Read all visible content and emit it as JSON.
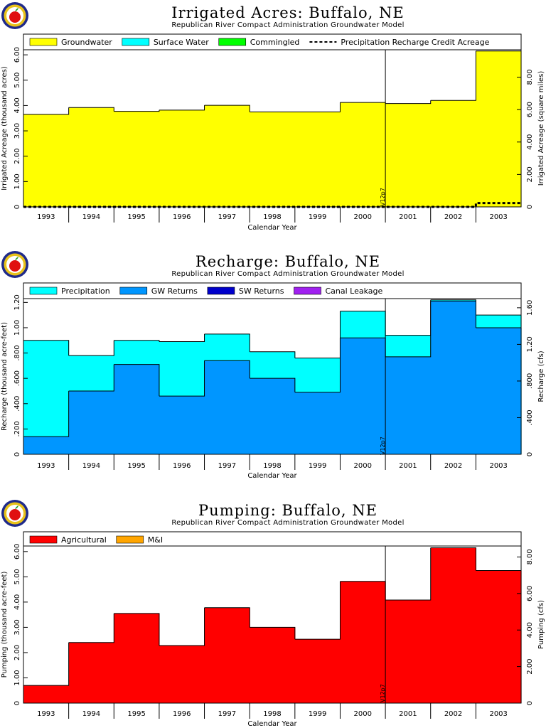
{
  "chart_data": [
    {
      "type": "area",
      "title": "Irrigated Acres: Buffalo, NE",
      "subtitle": "Republican River Compact Administration Groundwater Model",
      "xlabel": "Calendar Year",
      "ylabel": "Irrigated Acreage (thousand acres)",
      "ylabel_right": "Irrigated Acreage (square miles)",
      "categories": [
        "1993",
        "1994",
        "1995",
        "1996",
        "1997",
        "1998",
        "1999",
        "2000",
        "2001",
        "2002",
        "2003"
      ],
      "ylim": [
        0,
        6.2
      ],
      "yticks": [
        "0",
        "1.00",
        "2.00",
        "3.00",
        "4.00",
        "5.00",
        "6.00"
      ],
      "ylim_right": [
        0,
        9.69
      ],
      "yticks_right": [
        "0",
        "2.00",
        "4.00",
        "6.00",
        "8.00"
      ],
      "grid": false,
      "legend_position": "top",
      "series": [
        {
          "name": "Groundwater",
          "color": "#ffff00",
          "kind": "fill",
          "values": [
            3.65,
            3.92,
            3.77,
            3.82,
            4.01,
            3.75,
            3.75,
            4.12,
            4.08,
            4.2,
            6.15
          ]
        },
        {
          "name": "Surface Water",
          "color": "#00ffff",
          "kind": "fill",
          "values": [
            0,
            0,
            0,
            0,
            0,
            0,
            0,
            0,
            0,
            0,
            0
          ]
        },
        {
          "name": "Commingled",
          "color": "#00ff00",
          "kind": "fill",
          "values": [
            0,
            0,
            0,
            0,
            0,
            0,
            0,
            0,
            0,
            0,
            0
          ]
        },
        {
          "name": "Precipitation Recharge Credit Acreage",
          "color": "#000000",
          "kind": "dashed",
          "values": [
            0,
            0,
            0,
            0,
            0,
            0,
            0,
            0,
            0,
            0,
            0.15
          ]
        }
      ],
      "marker": {
        "year_boundary": "2000/2001",
        "label": "V12p7"
      }
    },
    {
      "type": "area",
      "title": "Recharge: Buffalo, NE",
      "subtitle": "Republican River Compact Administration Groundwater Model",
      "xlabel": "Calendar Year",
      "ylabel": "Recharge (thousand acre-feet)",
      "ylabel_right": "Recharge (cfs)",
      "categories": [
        "1993",
        "1994",
        "1995",
        "1996",
        "1997",
        "1998",
        "1999",
        "2000",
        "2001",
        "2002",
        "2003"
      ],
      "ylim": [
        0,
        1.23
      ],
      "yticks": [
        "0",
        ".200",
        ".400",
        ".600",
        ".800",
        "1.00",
        "1.20"
      ],
      "ylim_right": [
        0,
        1.7
      ],
      "yticks_right": [
        "0",
        ".400",
        ".800",
        "1.20",
        "1.60"
      ],
      "grid": false,
      "legend_position": "top",
      "series": [
        {
          "name": "Precipitation",
          "color": "#00ffff",
          "kind": "fill",
          "values": [
            0.9,
            0.78,
            0.9,
            0.89,
            0.95,
            0.81,
            0.76,
            1.13,
            0.94,
            1.22,
            1.1
          ]
        },
        {
          "name": "GW Returns",
          "color": "#0096ff",
          "kind": "fill",
          "values": [
            0.14,
            0.5,
            0.71,
            0.46,
            0.74,
            0.6,
            0.49,
            0.92,
            0.77,
            1.21,
            1.0
          ]
        },
        {
          "name": "SW Returns",
          "color": "#0000cc",
          "kind": "fill",
          "values": [
            0,
            0,
            0,
            0,
            0,
            0,
            0,
            0,
            0,
            0,
            0
          ]
        },
        {
          "name": "Canal Leakage",
          "color": "#a020f0",
          "kind": "fill",
          "values": [
            0,
            0,
            0,
            0,
            0,
            0,
            0,
            0,
            0,
            0,
            0
          ]
        }
      ],
      "marker": {
        "year_boundary": "2000/2001",
        "label": "V12p7"
      }
    },
    {
      "type": "area",
      "title": "Pumping: Buffalo, NE",
      "subtitle": "Republican River Compact Administration Groundwater Model",
      "xlabel": "Calendar Year",
      "ylabel": "Pumping (thousand acre-feet)",
      "ylabel_right": "Pumping (cfs)",
      "categories": [
        "1993",
        "1994",
        "1995",
        "1996",
        "1997",
        "1998",
        "1999",
        "2000",
        "2001",
        "2002",
        "2003"
      ],
      "ylim": [
        0,
        6.22
      ],
      "yticks": [
        "0",
        "1.00",
        "2.00",
        "3.00",
        "4.00",
        "5.00",
        "6.00"
      ],
      "ylim_right": [
        0,
        8.6
      ],
      "yticks_right": [
        "0",
        "2.00",
        "4.00",
        "6.00",
        "8.00"
      ],
      "grid": false,
      "legend_position": "top",
      "series": [
        {
          "name": "Agricultural",
          "color": "#ff0000",
          "kind": "fill",
          "values": [
            0.7,
            2.4,
            3.55,
            2.28,
            3.78,
            3.0,
            2.53,
            4.82,
            4.08,
            6.15,
            5.25
          ]
        },
        {
          "name": "M&I",
          "color": "#ffa500",
          "kind": "fill",
          "values": [
            0,
            0,
            0,
            0,
            0,
            0,
            0,
            0,
            0,
            0,
            0
          ]
        }
      ],
      "marker": {
        "year_boundary": "2000/2001",
        "label": "V12p7"
      }
    }
  ]
}
